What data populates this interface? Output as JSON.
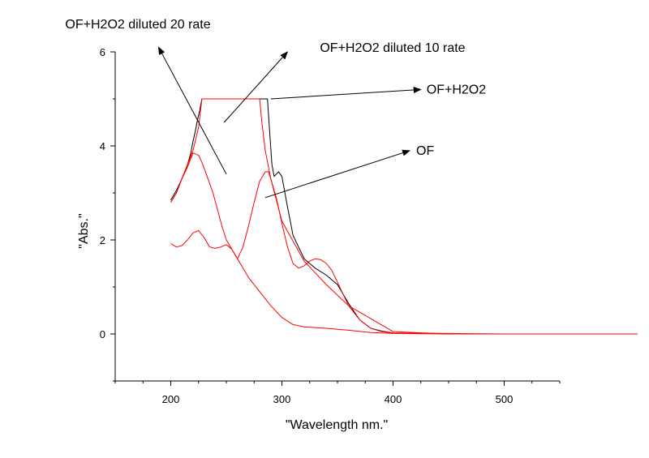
{
  "chart_data": {
    "type": "line",
    "title": "",
    "xlabel": "\"Wavelength nm.\"",
    "ylabel": "\"Abs.\"",
    "xlim": [
      150,
      550
    ],
    "ylim": [
      -1,
      6
    ],
    "x_ticks": [
      200,
      300,
      400,
      500
    ],
    "y_ticks": [
      0,
      2,
      4,
      6
    ],
    "grid": false,
    "legend": "none",
    "colors": {
      "black_series": "#000000",
      "red_series": "#ff0000",
      "axis": "#000000"
    },
    "series": [
      {
        "color": "#000000",
        "x": [
          200,
          205,
          210,
          215,
          218,
          220,
          222,
          224,
          226,
          228,
          232,
          240,
          260,
          280,
          287,
          289,
          291,
          293,
          295,
          297,
          300,
          305,
          310,
          320,
          330,
          340,
          350,
          360,
          370,
          380,
          390,
          400
        ],
        "y": [
          2.85,
          3.05,
          3.3,
          3.6,
          3.85,
          4.1,
          4.3,
          4.55,
          4.75,
          5.0,
          5.0,
          5.0,
          5.0,
          5.0,
          5.0,
          4.3,
          3.6,
          3.35,
          3.4,
          3.45,
          3.35,
          2.7,
          2.1,
          1.6,
          1.4,
          1.25,
          1.05,
          0.65,
          0.3,
          0.12,
          0.06,
          0.02
        ]
      },
      {
        "color": "#ff0000",
        "x": [
          200,
          205,
          210,
          215,
          220,
          225,
          228,
          230,
          232,
          240,
          260,
          280,
          282,
          285,
          290,
          300,
          320,
          340,
          360,
          400,
          450,
          500
        ],
        "y": [
          2.8,
          3.0,
          3.3,
          3.6,
          3.9,
          4.4,
          5.0,
          5.0,
          5.0,
          5.0,
          5.0,
          5.0,
          4.5,
          3.9,
          3.3,
          2.4,
          1.55,
          1.05,
          0.6,
          0.05,
          0.0,
          0.0
        ]
      },
      {
        "color": "#ff0000",
        "x": [
          200,
          205,
          210,
          215,
          220,
          225,
          228,
          232,
          238,
          242,
          246,
          250,
          255,
          260,
          270,
          280,
          290,
          300,
          310,
          320,
          340,
          360,
          380,
          400,
          450,
          500
        ],
        "y": [
          2.8,
          3.0,
          3.3,
          3.55,
          3.85,
          3.8,
          3.65,
          3.4,
          3.0,
          2.65,
          2.3,
          2.0,
          1.8,
          1.6,
          1.2,
          0.9,
          0.6,
          0.35,
          0.2,
          0.15,
          0.12,
          0.08,
          0.03,
          0.01,
          0.0,
          0.0
        ]
      },
      {
        "color": "#ff0000",
        "x": [
          200,
          205,
          210,
          215,
          220,
          225,
          230,
          235,
          240,
          245,
          250,
          255,
          260,
          265,
          270,
          275,
          280,
          285,
          288,
          290,
          295,
          300,
          305,
          310,
          315,
          320,
          325,
          330,
          335,
          340,
          345,
          350,
          355,
          360,
          370,
          380,
          390,
          400,
          500,
          620
        ],
        "y": [
          1.92,
          1.85,
          1.88,
          2.0,
          2.15,
          2.2,
          2.05,
          1.85,
          1.82,
          1.85,
          1.9,
          1.8,
          1.6,
          1.85,
          2.3,
          2.8,
          3.25,
          3.45,
          3.45,
          3.3,
          2.9,
          2.35,
          1.85,
          1.5,
          1.4,
          1.45,
          1.55,
          1.6,
          1.58,
          1.5,
          1.35,
          1.1,
          0.85,
          0.6,
          0.3,
          0.12,
          0.05,
          0.02,
          0.0,
          0.0
        ]
      }
    ],
    "annotations": [
      {
        "label": "OF+H2O2 diluted 20 rate",
        "arrow_from": [
          250,
          3.4
        ],
        "arrow_to": [
          189,
          6.1
        ]
      },
      {
        "label": "OF+H2O2 diluted 10 rate",
        "arrow_from": [
          248,
          4.5
        ],
        "arrow_to": [
          305,
          6.0
        ]
      },
      {
        "label": "OF+H2O2",
        "arrow_from": [
          290,
          5.0
        ],
        "arrow_to": [
          425,
          5.2
        ]
      },
      {
        "label": "OF",
        "arrow_from": [
          285,
          2.9
        ],
        "arrow_to": [
          415,
          3.9
        ]
      }
    ]
  }
}
